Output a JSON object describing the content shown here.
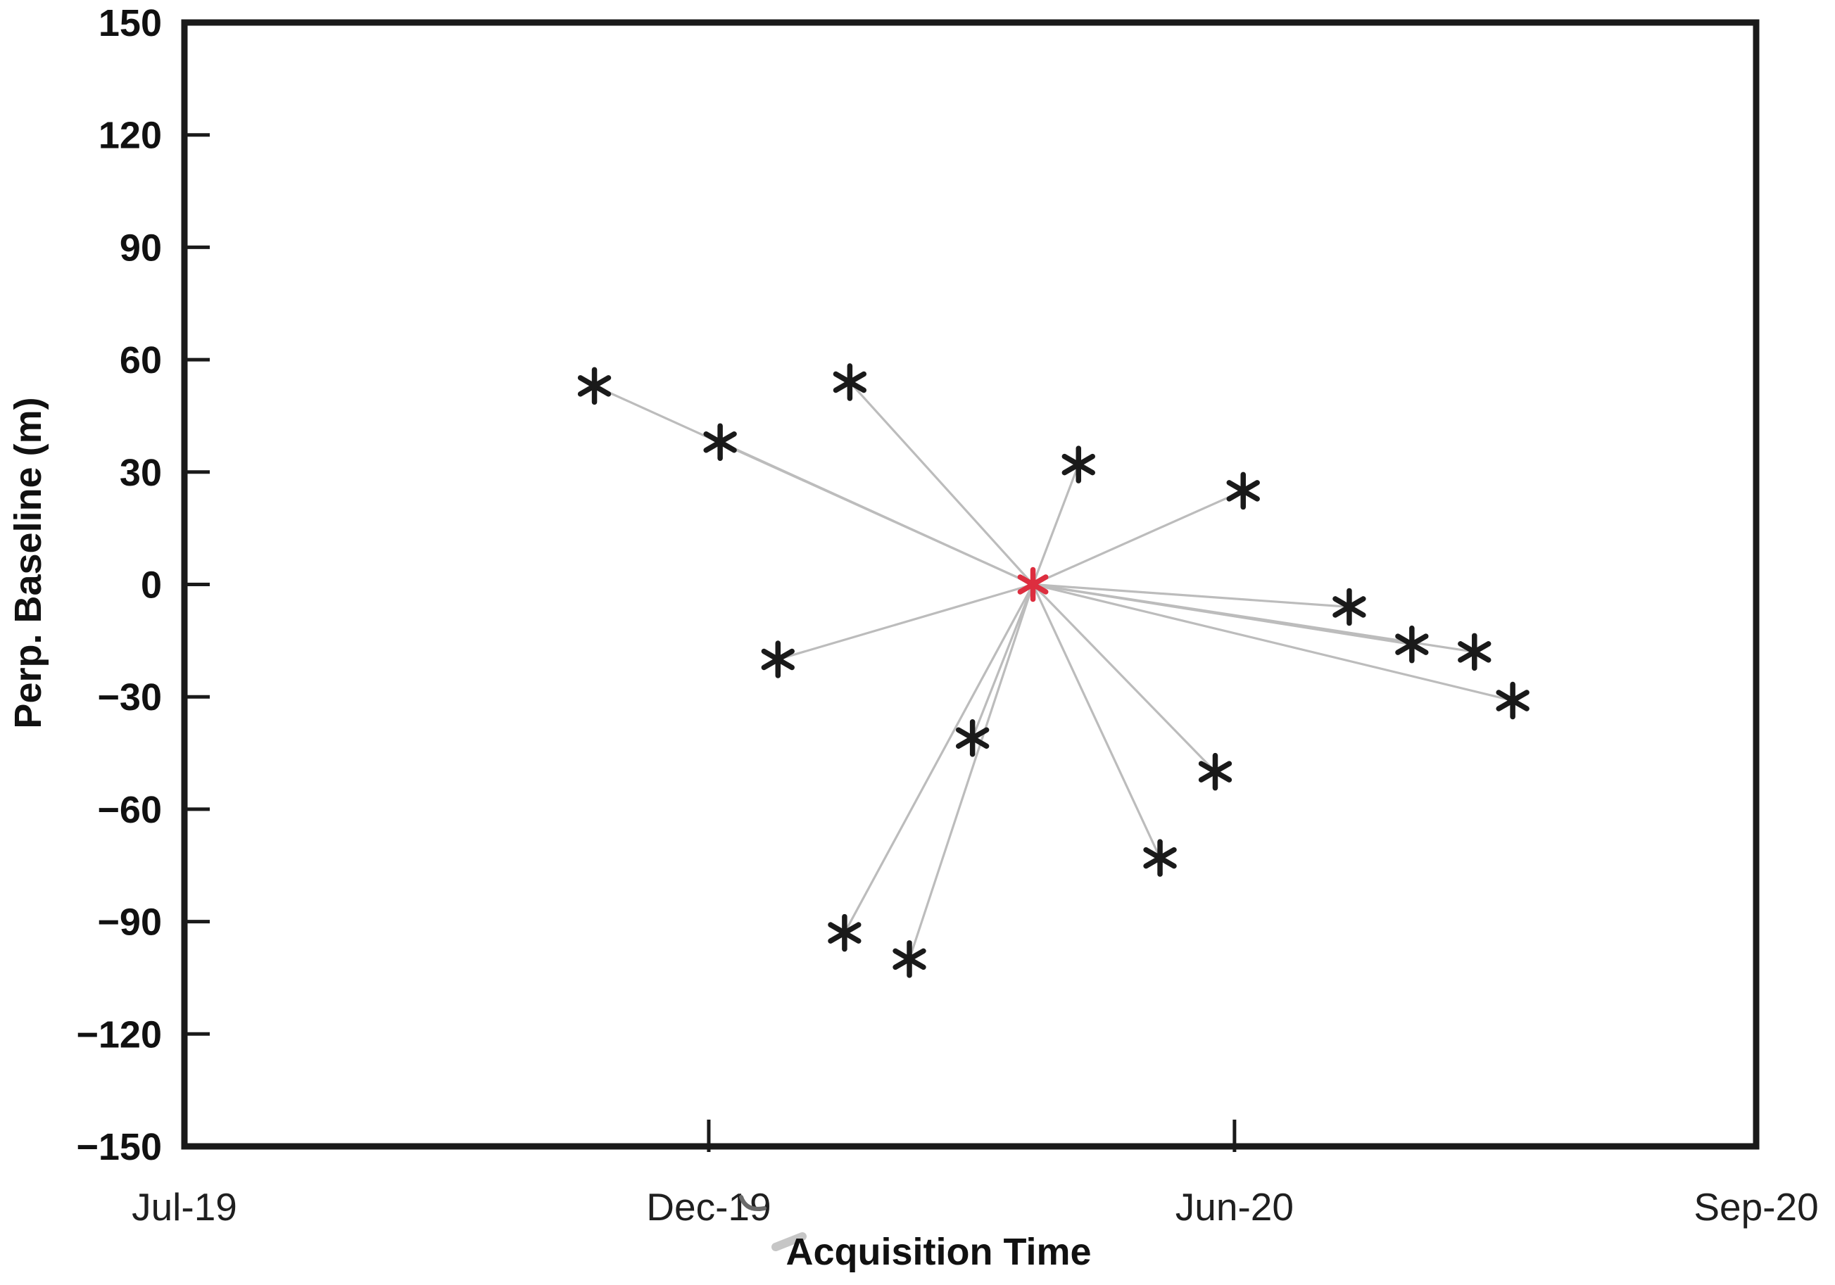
{
  "figure": {
    "background": "#ffffff",
    "axis_color": "#1a1a1a",
    "connector_line_color": "#bcbcbc",
    "marker_color": "#1a1a1a",
    "reference_marker_color": "#dd2e3f"
  },
  "chart_data": {
    "type": "scatter",
    "title": "",
    "xlabel": "Acquisition Time",
    "ylabel": "Perp. Baseline (m)",
    "ylim": [
      -150,
      150
    ],
    "y_tick_step": 30,
    "grid": false,
    "legend": null,
    "description": "SAR interferometric baseline star-network plot: one red reference (master) acquisition at 0 m perpendicular baseline connected by gray lines to every other acquisition (black asterisk markers).",
    "y_ticks": [
      {
        "value": 150,
        "label": "150"
      },
      {
        "value": 120,
        "label": "120"
      },
      {
        "value": 90,
        "label": "90"
      },
      {
        "value": 60,
        "label": "60"
      },
      {
        "value": 30,
        "label": "30"
      },
      {
        "value": 0,
        "label": "0"
      },
      {
        "value": -30,
        "label": "−30"
      },
      {
        "value": -60,
        "label": "−60"
      },
      {
        "value": -90,
        "label": "−90"
      },
      {
        "value": -120,
        "label": "−120"
      },
      {
        "value": -150,
        "label": "−150"
      }
    ],
    "x_anchors": [
      {
        "label": "Jul-19",
        "t": 0,
        "axis_frac": 0.0,
        "tick": false
      },
      {
        "label": "Dec-19",
        "t": 5,
        "axis_frac": 0.3336,
        "tick": true
      },
      {
        "label": "Jun-20",
        "t": 11,
        "axis_frac": 0.6681,
        "tick": true
      },
      {
        "label": "Sep-20",
        "t": 14,
        "axis_frac": 1.0,
        "tick": false
      }
    ],
    "t_unit": "months since Jul-2019",
    "reference_point": {
      "date_est": "Apr-20",
      "t": 8.7,
      "baseline_m": 0
    },
    "points": [
      {
        "date_est": "Oct-19",
        "t": 3.91,
        "baseline_m": 53
      },
      {
        "date_est": "Dec-19",
        "t": 5.13,
        "baseline_m": 38
      },
      {
        "date_est": "Jan-20",
        "t": 6.61,
        "baseline_m": 54
      },
      {
        "date_est": "Apr-20",
        "t": 9.22,
        "baseline_m": 32
      },
      {
        "date_est": "Jun-20",
        "t": 11.05,
        "baseline_m": 25
      },
      {
        "date_est": "Jun-20",
        "t": 11.66,
        "baseline_m": -6
      },
      {
        "date_est": "Jul-20",
        "t": 12.02,
        "baseline_m": -16
      },
      {
        "date_est": "Jul-20",
        "t": 12.38,
        "baseline_m": -18
      },
      {
        "date_est": "Jul-20",
        "t": 12.6,
        "baseline_m": -31
      },
      {
        "date_est": "Dec-19",
        "t": 5.79,
        "baseline_m": -20
      },
      {
        "date_est": "Mar-20",
        "t": 8.01,
        "baseline_m": -41
      },
      {
        "date_est": "May-20",
        "t": 10.78,
        "baseline_m": -50
      },
      {
        "date_est": "May-20",
        "t": 10.15,
        "baseline_m": -73
      },
      {
        "date_est": "Jan-20",
        "t": 6.55,
        "baseline_m": -93
      },
      {
        "date_est": "Feb-20",
        "t": 7.29,
        "baseline_m": -100
      }
    ],
    "connections": "every point connects to reference_point"
  }
}
